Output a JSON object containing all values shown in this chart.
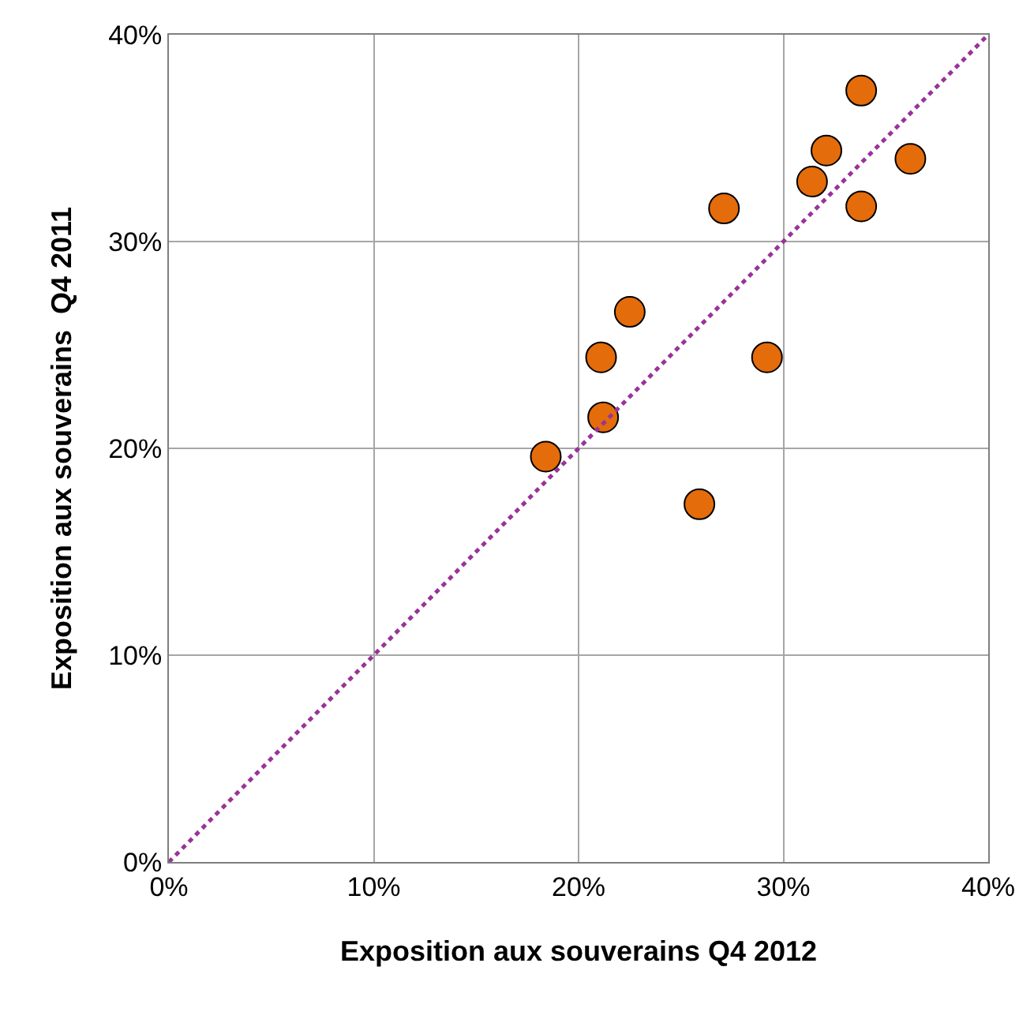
{
  "chart_data": {
    "type": "scatter",
    "xlabel": "Exposition aux souverains Q4 2012",
    "ylabel": "Exposition aux souverains  Q4 2011",
    "series": [
      {
        "color": "#e46c0a",
        "marker": "circle",
        "x": [
          18.4,
          21.2,
          21.1,
          22.5,
          25.9,
          29.2,
          27.1,
          31.4,
          32.1,
          33.8,
          33.8,
          36.2
        ],
        "values": [
          19.6,
          21.5,
          24.4,
          26.6,
          17.3,
          24.4,
          31.6,
          32.9,
          34.4,
          37.3,
          31.7,
          34.0
        ]
      },
      {
        "type": "line",
        "color": "#993399",
        "line_style": "dotted",
        "marker": "none",
        "x": [
          0,
          40
        ],
        "values": [
          0,
          40
        ]
      }
    ],
    "xlim": [
      0,
      40
    ],
    "ylim": [
      0,
      40
    ],
    "xticks": [
      {
        "value": 0,
        "label": "0%"
      },
      {
        "value": 10,
        "label": "10%"
      },
      {
        "value": 20,
        "label": "20%"
      },
      {
        "value": 30,
        "label": "30%"
      },
      {
        "value": 40,
        "label": "40%"
      }
    ],
    "yticks": [
      {
        "value": 0,
        "label": "0%"
      },
      {
        "value": 10,
        "label": "10%"
      },
      {
        "value": 20,
        "label": "20%"
      },
      {
        "value": 30,
        "label": "30%"
      },
      {
        "value": 40,
        "label": "40%"
      }
    ],
    "grid": true
  }
}
